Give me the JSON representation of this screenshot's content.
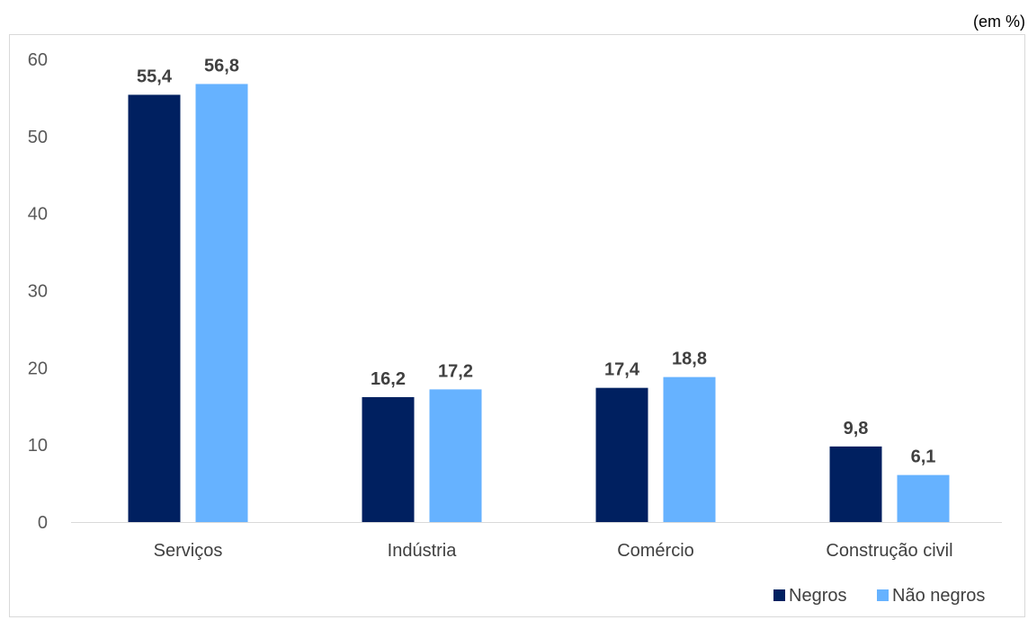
{
  "chart_data": {
    "type": "bar",
    "unit_label": "(em %)",
    "categories": [
      "Serviços",
      "Indústria",
      "Comércio",
      "Construção civil"
    ],
    "series": [
      {
        "name": "Negros",
        "color": "#002060",
        "values": [
          55.4,
          16.2,
          17.4,
          9.8
        ],
        "labels": [
          "55,4",
          "16,2",
          "17,4",
          "9,8"
        ]
      },
      {
        "name": "Não negros",
        "color": "#66b2ff",
        "values": [
          56.8,
          17.2,
          18.8,
          6.1
        ],
        "labels": [
          "56,8",
          "17,2",
          "18,8",
          "6,1"
        ]
      }
    ],
    "yticks": [
      0,
      10,
      20,
      30,
      40,
      50,
      60
    ],
    "ylim": [
      0,
      60
    ],
    "grid": false,
    "legend_position": "bottom-right"
  }
}
